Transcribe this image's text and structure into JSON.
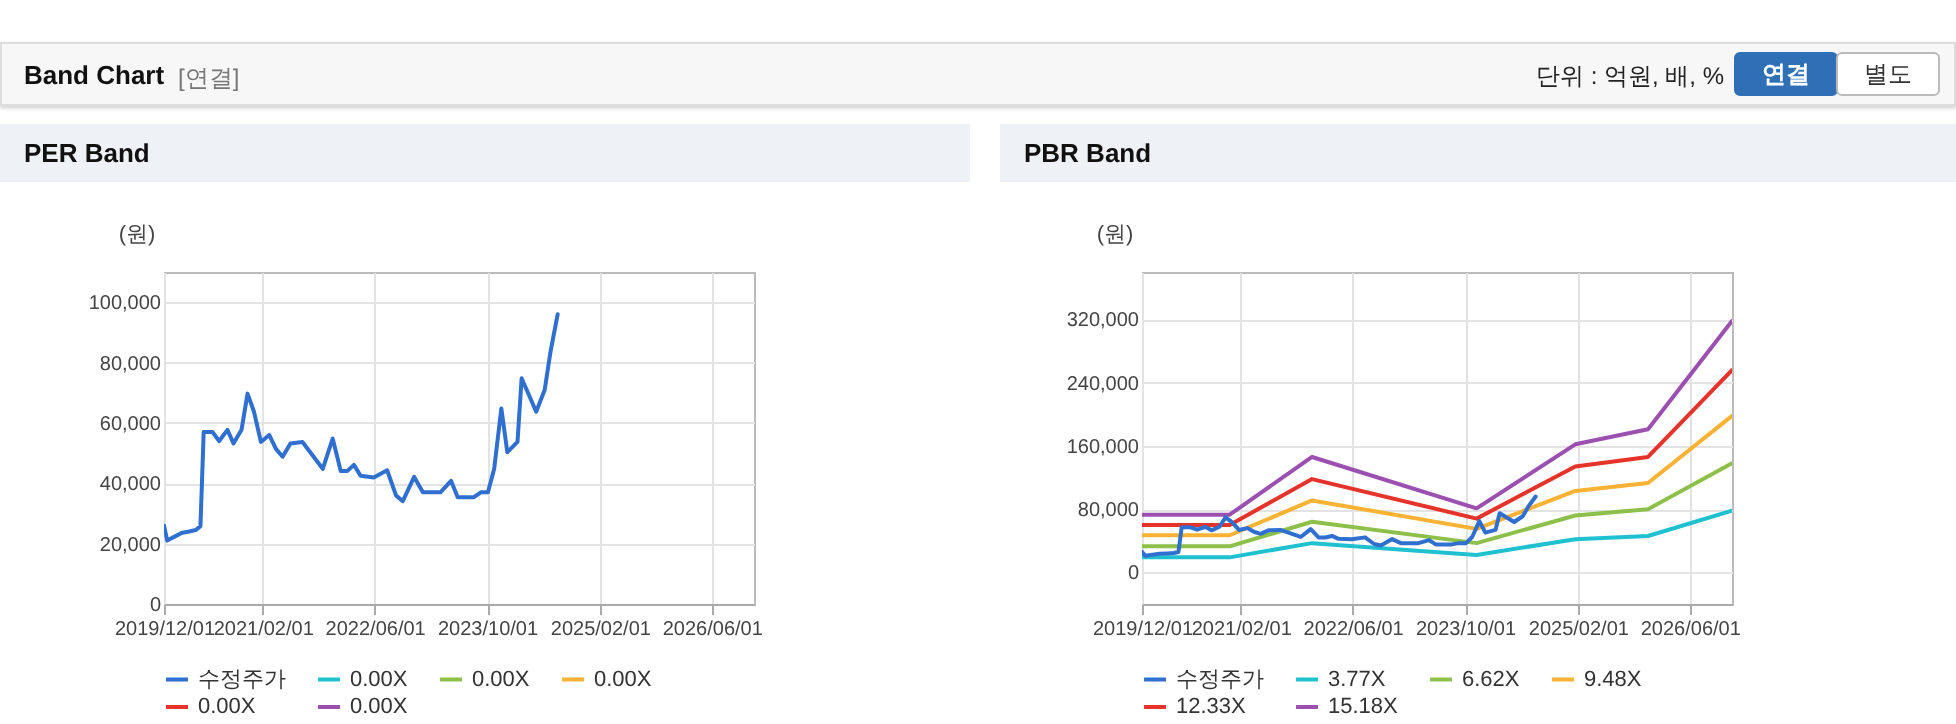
{
  "chart_data": [
    {
      "type": "line",
      "title": "PER Band",
      "ylabel": "(원)",
      "annotations": [
        "Band Chart",
        "[연결]",
        "단위 : 억원, 배, %",
        "연결",
        "별도"
      ],
      "x": [
        "2019-12-01",
        "2019-12-15",
        "2020-01-08",
        "2020-02-15",
        "2020-03-19",
        "2020-04-17",
        "2020-05-07",
        "2020-05-21",
        "2020-06-28",
        "2020-07-27",
        "2020-09-01",
        "2020-09-27",
        "2020-11-01",
        "2020-11-27",
        "2020-12-25",
        "2021-01-24",
        "2021-03-01",
        "2021-03-30",
        "2021-04-28",
        "2021-06-01",
        "2021-07-23",
        "2021-10-19",
        "2021-12-01",
        "2022-01-05",
        "2022-02-03",
        "2022-03-03",
        "2022-04-01",
        "2022-05-28",
        "2022-07-25",
        "2022-09-02",
        "2022-10-01",
        "2022-11-19",
        "2022-12-27",
        "2023-03-13",
        "2023-04-28",
        "2023-05-27",
        "2023-08-05",
        "2023-09-04",
        "2023-10-05",
        "2023-11-01",
        "2023-12-02",
        "2023-12-28",
        "2024-02-10",
        "2024-02-28",
        "2024-05-01",
        "2024-06-07",
        "2024-07-01",
        "2024-08-02"
      ],
      "series": [
        {
          "name": "수정주가",
          "color": "#2f6fd0",
          "values": [
            26000,
            21000,
            22000,
            23500,
            24000,
            24500,
            25800,
            57000,
            57000,
            54000,
            57700,
            53200,
            57700,
            69700,
            63700,
            53700,
            56000,
            51400,
            48800,
            53200,
            53700,
            44800,
            54800,
            44100,
            44100,
            46100,
            42500,
            41900,
            44300,
            35900,
            34100,
            42100,
            37000,
            37000,
            40800,
            35400,
            35400,
            37000,
            37000,
            44800,
            64800,
            50300,
            53700,
            74800,
            63700,
            71000,
            83100,
            96000
          ]
        },
        {
          "name": "0.00X",
          "color": "#1fc0d0",
          "values": [
            null,
            null,
            null,
            null,
            null,
            null,
            null,
            null,
            null,
            null,
            null,
            null,
            null,
            null,
            null,
            null,
            null,
            null,
            null,
            null,
            null,
            null,
            null,
            null,
            null,
            null,
            null,
            null,
            null,
            null,
            null,
            null,
            null,
            null,
            null,
            null,
            null,
            null,
            null,
            null,
            null,
            null,
            null,
            null,
            null,
            null,
            null,
            null
          ]
        },
        {
          "name": "0.00X",
          "color": "#8dc04a",
          "values": [
            null,
            null,
            null,
            null,
            null,
            null,
            null,
            null,
            null,
            null,
            null,
            null,
            null,
            null,
            null,
            null,
            null,
            null,
            null,
            null,
            null,
            null,
            null,
            null,
            null,
            null,
            null,
            null,
            null,
            null,
            null,
            null,
            null,
            null,
            null,
            null,
            null,
            null,
            null,
            null,
            null,
            null,
            null,
            null,
            null,
            null,
            null,
            null
          ]
        },
        {
          "name": "0.00X",
          "color": "#f9b233",
          "values": [
            null,
            null,
            null,
            null,
            null,
            null,
            null,
            null,
            null,
            null,
            null,
            null,
            null,
            null,
            null,
            null,
            null,
            null,
            null,
            null,
            null,
            null,
            null,
            null,
            null,
            null,
            null,
            null,
            null,
            null,
            null,
            null,
            null,
            null,
            null,
            null,
            null,
            null,
            null,
            null,
            null,
            null,
            null,
            null,
            null,
            null,
            null,
            null
          ]
        },
        {
          "name": "0.00X",
          "color": "#e53329",
          "values": [
            null,
            null,
            null,
            null,
            null,
            null,
            null,
            null,
            null,
            null,
            null,
            null,
            null,
            null,
            null,
            null,
            null,
            null,
            null,
            null,
            null,
            null,
            null,
            null,
            null,
            null,
            null,
            null,
            null,
            null,
            null,
            null,
            null,
            null,
            null,
            null,
            null,
            null,
            null,
            null,
            null,
            null,
            null,
            null,
            null,
            null,
            null,
            null
          ]
        },
        {
          "name": "0.00X",
          "color": "#9b4fb0",
          "values": [
            null,
            null,
            null,
            null,
            null,
            null,
            null,
            null,
            null,
            null,
            null,
            null,
            null,
            null,
            null,
            null,
            null,
            null,
            null,
            null,
            null,
            null,
            null,
            null,
            null,
            null,
            null,
            null,
            null,
            null,
            null,
            null,
            null,
            null,
            null,
            null,
            null,
            null,
            null,
            null,
            null,
            null,
            null,
            null,
            null,
            null,
            null,
            null
          ]
        }
      ],
      "xlim": [
        "2019-12-01",
        "2026-12-01"
      ],
      "xticks": [
        {
          "value": "2019-12-01",
          "label": "2019/12/01"
        },
        {
          "value": "2021-02-01",
          "label": "2021/02/01"
        },
        {
          "value": "2022-06-01",
          "label": "2022/06/01"
        },
        {
          "value": "2023-10-01",
          "label": "2023/10/01"
        },
        {
          "value": "2025-02-01",
          "label": "2025/02/01"
        },
        {
          "value": "2026-06-01",
          "label": "2026/06/01"
        }
      ],
      "ylim": [
        0,
        110000
      ],
      "yticks": [
        0,
        {
          "value": 20000,
          "label": "20,000"
        },
        {
          "value": 40000,
          "label": "40,000"
        },
        {
          "value": 60000,
          "label": "60,000"
        },
        {
          "value": 80000,
          "label": "80,000"
        },
        {
          "value": 100000,
          "label": "100,000"
        }
      ],
      "grid": true,
      "legend": "bottom",
      "marker": "none",
      "line_style": "solid"
    },
    {
      "type": "line",
      "title": "PBR Band",
      "ylabel": "(원)",
      "x": [
        "2019-12-01",
        "2019-12-15",
        "2020-01-08",
        "2020-02-15",
        "2020-03-19",
        "2020-04-17",
        "2020-05-07",
        "2020-05-21",
        "2020-06-28",
        "2020-07-27",
        "2020-09-01",
        "2020-09-27",
        "2020-11-01",
        "2020-11-27",
        "2020-12-25",
        "2021-01-24",
        "2021-03-01",
        "2021-03-30",
        "2021-04-28",
        "2021-06-01",
        "2021-07-23",
        "2021-10-19",
        "2021-12-01",
        "2022-01-05",
        "2022-02-03",
        "2022-03-03",
        "2022-04-01",
        "2022-05-28",
        "2022-07-25",
        "2022-09-02",
        "2022-10-01",
        "2022-11-19",
        "2022-12-27",
        "2023-03-13",
        "2023-04-28",
        "2023-05-27",
        "2023-08-05",
        "2023-09-04",
        "2023-10-05",
        "2023-11-01",
        "2023-12-02",
        "2023-12-28",
        "2024-02-10",
        "2024-02-28",
        "2024-05-01",
        "2024-06-07",
        "2024-07-01",
        "2024-08-02"
      ],
      "series": [
        {
          "name": "수정주가",
          "color": "#2f6fd0",
          "values": [
            26000,
            21000,
            22000,
            23500,
            24000,
            24500,
            25800,
            57000,
            57000,
            54000,
            57700,
            53200,
            57700,
            69700,
            63700,
            53700,
            56000,
            51400,
            48800,
            53200,
            53700,
            44800,
            54800,
            44100,
            44100,
            46100,
            42500,
            41900,
            44300,
            35900,
            34100,
            42100,
            37000,
            37000,
            40800,
            35400,
            35400,
            37000,
            37000,
            44800,
            64800,
            50300,
            53700,
            74800,
            63700,
            71000,
            83100,
            96000
          ]
        },
        {
          "name": "3.77X",
          "color": "#1fc0d0",
          "x": [
            "2019-12-01",
            "2020-12-15",
            "2021-12-07",
            "2023-11-20",
            "2025-01-21",
            "2025-12-02",
            "2026-12-01"
          ],
          "values": [
            19000,
            19000,
            37000,
            22000,
            42000,
            46000,
            78000
          ]
        },
        {
          "name": "6.62X",
          "color": "#8dc04a",
          "x": [
            "2019-12-01",
            "2020-12-15",
            "2021-12-07",
            "2023-11-20",
            "2025-01-21",
            "2025-12-02",
            "2026-12-01"
          ],
          "values": [
            33000,
            33000,
            64000,
            37000,
            72000,
            80000,
            138000
          ]
        },
        {
          "name": "9.48X",
          "color": "#f9b233",
          "x": [
            "2019-12-01",
            "2020-12-15",
            "2021-12-07",
            "2023-11-20",
            "2025-01-21",
            "2025-12-02",
            "2026-12-01"
          ],
          "values": [
            47000,
            47000,
            91000,
            55000,
            103000,
            113000,
            198000
          ]
        },
        {
          "name": "12.33X",
          "color": "#e53329",
          "x": [
            "2019-12-01",
            "2020-12-15",
            "2021-12-07",
            "2023-11-20",
            "2025-01-21",
            "2025-12-02",
            "2026-12-01"
          ],
          "values": [
            60000,
            60000,
            118000,
            68000,
            134000,
            146000,
            256000
          ]
        },
        {
          "name": "15.18X",
          "color": "#9b4fb0",
          "x": [
            "2019-12-01",
            "2020-12-15",
            "2021-12-07",
            "2023-11-20",
            "2025-01-21",
            "2025-12-02",
            "2026-12-01"
          ],
          "values": [
            73000,
            73000,
            146000,
            81000,
            162000,
            181000,
            318000
          ]
        }
      ],
      "xlim": [
        "2019-12-01",
        "2026-12-01"
      ],
      "xticks": [
        {
          "value": "2019-12-01",
          "label": "2019/12/01"
        },
        {
          "value": "2021-02-01",
          "label": "2021/02/01"
        },
        {
          "value": "2022-06-01",
          "label": "2022/06/01"
        },
        {
          "value": "2023-10-01",
          "label": "2023/10/01"
        },
        {
          "value": "2025-02-01",
          "label": "2025/02/01"
        },
        {
          "value": "2026-06-01",
          "label": "2026/06/01"
        }
      ],
      "ylim": [
        -40000,
        380000
      ],
      "yticks": [
        0,
        {
          "value": 80000,
          "label": "80,000"
        },
        {
          "value": 160000,
          "label": "160,000"
        },
        {
          "value": 240000,
          "label": "240,000"
        },
        {
          "value": 320000,
          "label": "320,000"
        }
      ],
      "grid": true,
      "legend": "bottom",
      "marker": "none",
      "line_style": "solid"
    }
  ]
}
